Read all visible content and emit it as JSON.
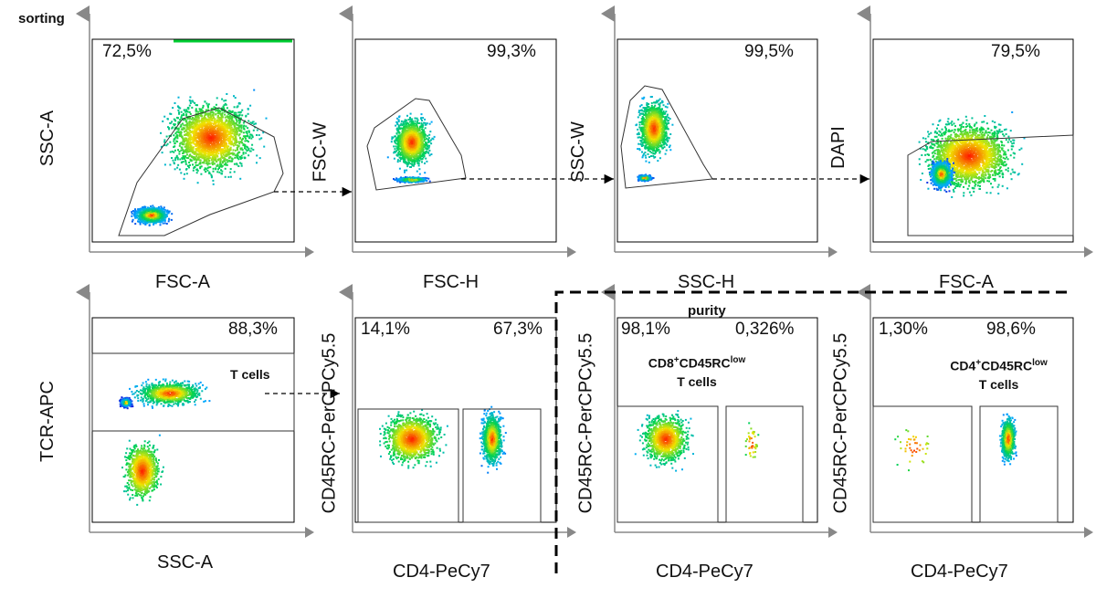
{
  "figure": {
    "title": "sorting",
    "purity_label": "purity"
  },
  "plots": [
    {
      "id": "p1",
      "xlabel": "FSC-A",
      "ylabel": "SSC-A",
      "pcts": [
        "72,5%"
      ]
    },
    {
      "id": "p2",
      "xlabel": "FSC-H",
      "ylabel": "FSC-W",
      "pcts": [
        "99,3%"
      ]
    },
    {
      "id": "p3",
      "xlabel": "SSC-H",
      "ylabel": "SSC-W",
      "pcts": [
        "99,5%"
      ]
    },
    {
      "id": "p4",
      "xlabel": "FSC-A",
      "ylabel": "DAPI",
      "pcts": [
        "79,5%"
      ]
    },
    {
      "id": "p5",
      "xlabel": "SSC-A",
      "ylabel": "TCR-APC",
      "pcts": [
        "88,3%"
      ],
      "gate_label": "T cells"
    },
    {
      "id": "p6",
      "xlabel": "CD4-PeCy7",
      "ylabel": "CD45RC-PerCPCy5.5",
      "pcts": [
        "14,1%",
        "67,3%"
      ]
    },
    {
      "id": "p7",
      "xlabel": "CD4-PeCy7",
      "ylabel": "CD45RC-PerCPCy5.5",
      "pcts": [
        "98,1%",
        "0,326%"
      ],
      "gate_label": {
        "main": "CD8",
        "sup1": "+",
        "mid": "CD45RC",
        "sup2": "low",
        "line2": "T cells"
      }
    },
    {
      "id": "p8",
      "xlabel": "CD4-PeCy7",
      "ylabel": "CD45RC-PerCPCy5.5",
      "pcts": [
        "1,30%",
        "98,6%"
      ],
      "gate_label": {
        "main": "CD4",
        "sup1": "+",
        "mid": "CD45RC",
        "sup2": "low",
        "line2": "T cells"
      }
    }
  ],
  "colors": {
    "axis": "#888888",
    "gate": "#333333",
    "density_low": "#1a1aff",
    "density_high": "#ff0000"
  }
}
